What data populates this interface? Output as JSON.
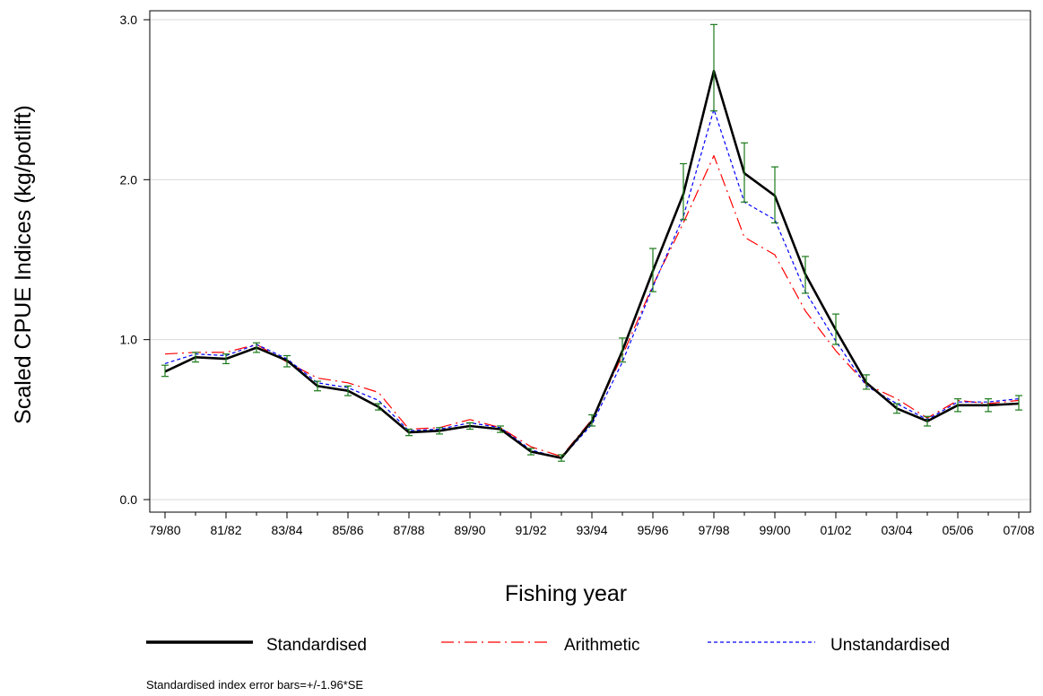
{
  "chart_data": {
    "type": "line",
    "xlabel": "Fishing year",
    "ylabel": "Scaled CPUE Indices (kg/potlift)",
    "ylim": [
      0,
      3.0
    ],
    "yticks": [
      "0.0",
      "1.0",
      "2.0",
      "3.0"
    ],
    "yticks_values": [
      0,
      1,
      2,
      3
    ],
    "x": [
      "79/80",
      "80/81",
      "81/82",
      "82/83",
      "83/84",
      "84/85",
      "85/86",
      "86/87",
      "87/88",
      "88/89",
      "89/90",
      "90/91",
      "91/92",
      "92/93",
      "93/94",
      "94/95",
      "95/96",
      "96/97",
      "97/98",
      "98/99",
      "99/00",
      "00/01",
      "01/02",
      "02/03",
      "03/04",
      "04/05",
      "05/06",
      "06/07",
      "07/08"
    ],
    "xtick_labels": [
      "79/80",
      "81/82",
      "83/84",
      "85/86",
      "87/88",
      "89/90",
      "91/92",
      "93/94",
      "95/96",
      "97/98",
      "99/00",
      "01/02",
      "03/04",
      "05/06",
      "07/08"
    ],
    "grid": true,
    "legend_position": "bottom",
    "series": [
      {
        "name": "Standardised",
        "color": "#000000",
        "style": "solid",
        "values": [
          0.8,
          0.89,
          0.88,
          0.95,
          0.87,
          0.71,
          0.68,
          0.58,
          0.42,
          0.43,
          0.46,
          0.44,
          0.3,
          0.26,
          0.49,
          0.93,
          1.43,
          1.91,
          2.68,
          2.04,
          1.9,
          1.41,
          1.06,
          0.73,
          0.57,
          0.49,
          0.59,
          0.59,
          0.6
        ],
        "error_low": [
          0.77,
          0.86,
          0.85,
          0.92,
          0.83,
          0.68,
          0.65,
          0.56,
          0.4,
          0.41,
          0.44,
          0.42,
          0.28,
          0.24,
          0.46,
          0.86,
          1.3,
          1.75,
          2.43,
          1.86,
          1.73,
          1.29,
          0.97,
          0.69,
          0.54,
          0.46,
          0.55,
          0.55,
          0.56
        ],
        "error_high": [
          0.84,
          0.92,
          0.91,
          0.98,
          0.9,
          0.74,
          0.71,
          0.6,
          0.44,
          0.45,
          0.48,
          0.46,
          0.32,
          0.28,
          0.53,
          1.01,
          1.57,
          2.1,
          2.97,
          2.23,
          2.08,
          1.52,
          1.16,
          0.78,
          0.6,
          0.52,
          0.63,
          0.63,
          0.65
        ]
      },
      {
        "name": "Arithmetic",
        "color": "#ff0000",
        "style": "dashdot",
        "values": [
          0.91,
          0.92,
          0.92,
          0.97,
          0.86,
          0.76,
          0.73,
          0.67,
          0.44,
          0.45,
          0.5,
          0.45,
          0.33,
          0.27,
          0.5,
          0.9,
          1.34,
          1.73,
          2.15,
          1.64,
          1.53,
          1.18,
          0.93,
          0.72,
          0.63,
          0.51,
          0.62,
          0.6,
          0.62
        ]
      },
      {
        "name": "Unstandardised",
        "color": "#0000ff",
        "style": "dotted",
        "values": [
          0.85,
          0.91,
          0.9,
          0.97,
          0.88,
          0.73,
          0.7,
          0.62,
          0.43,
          0.44,
          0.48,
          0.45,
          0.31,
          0.26,
          0.47,
          0.86,
          1.33,
          1.77,
          2.44,
          1.86,
          1.75,
          1.3,
          0.99,
          0.71,
          0.6,
          0.5,
          0.61,
          0.61,
          0.63
        ]
      }
    ],
    "footnote": "Standardised index error bars=+/-1.96*SE"
  }
}
